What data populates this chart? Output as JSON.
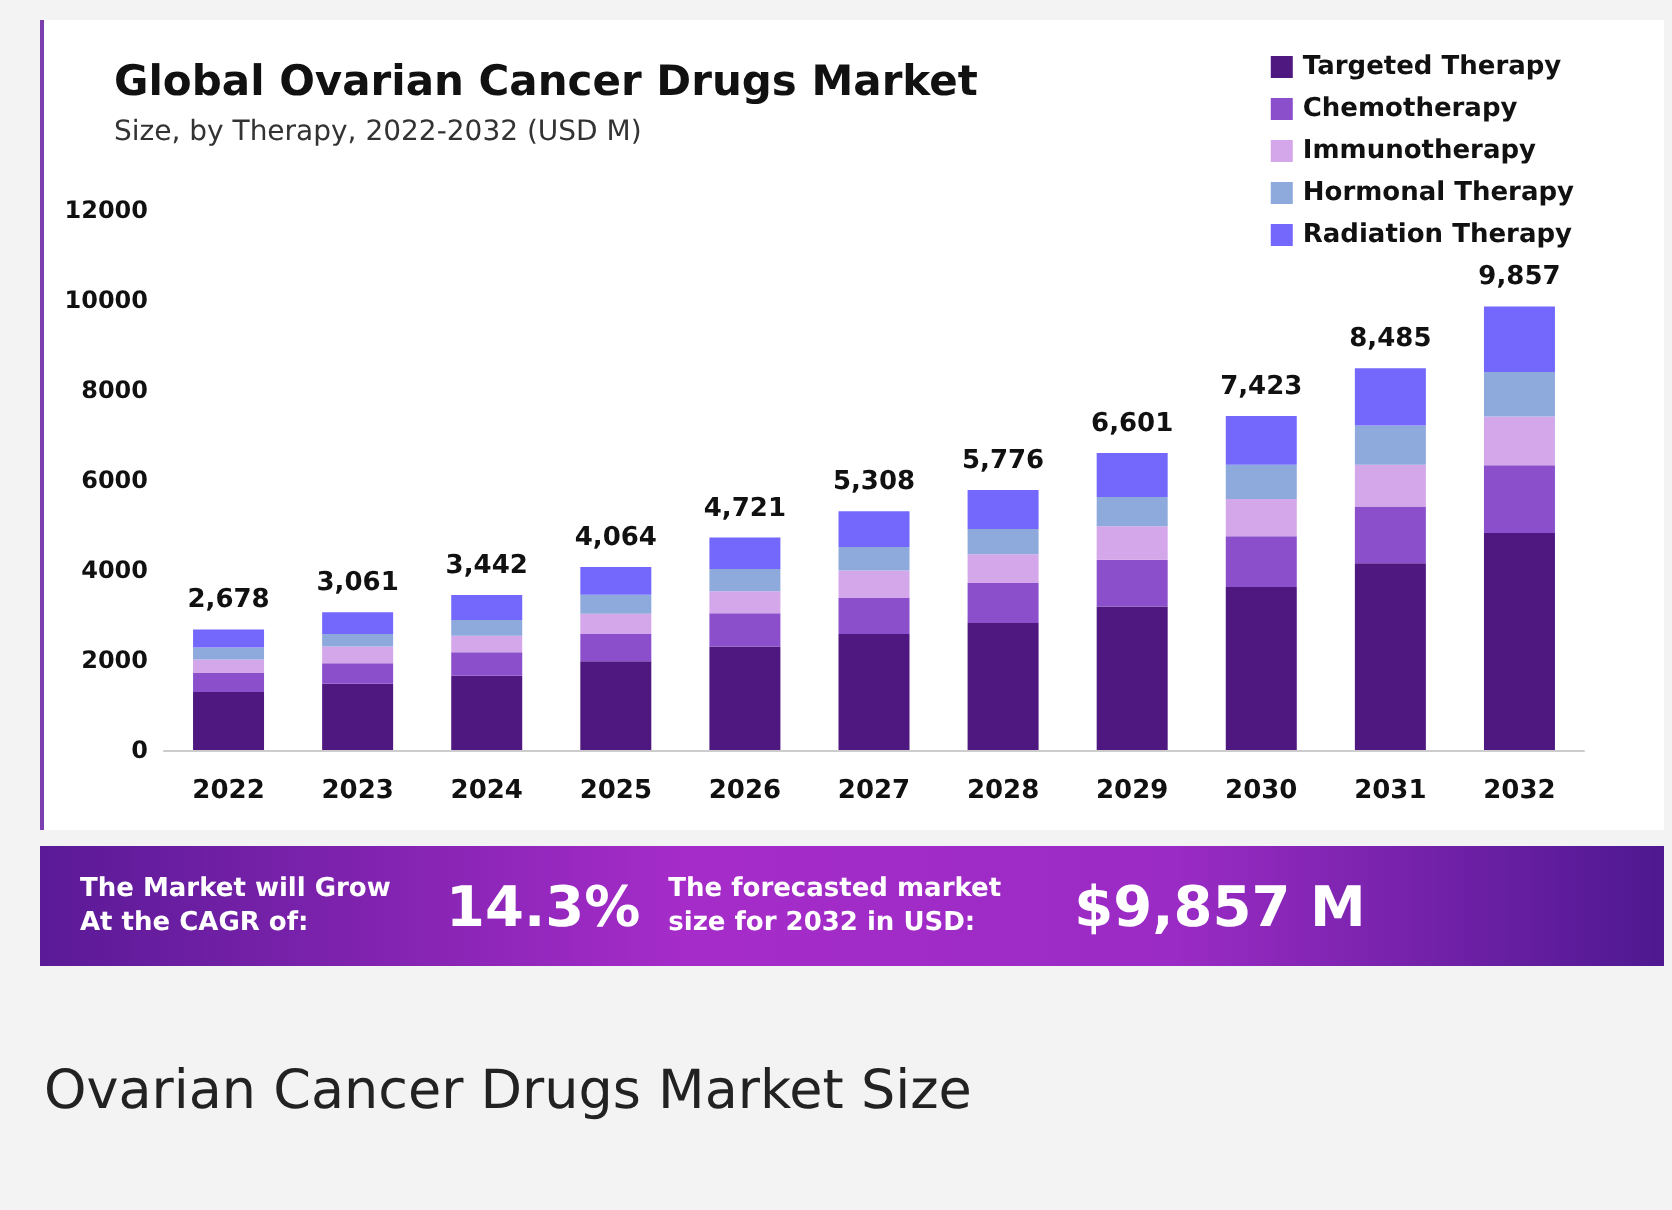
{
  "chart_data": {
    "type": "bar",
    "title": "Global Ovarian Cancer Drugs Market",
    "subtitle": "Size, by Therapy, 2022-2032 (USD M)",
    "categories": [
      "2022",
      "2023",
      "2024",
      "2025",
      "2026",
      "2027",
      "2028",
      "2029",
      "2030",
      "2031",
      "2032"
    ],
    "stacked": true,
    "series": [
      {
        "name": "Targeted Therapy",
        "color": "#4f1780",
        "values": [
          1290,
          1470,
          1650,
          1970,
          2300,
          2580,
          2820,
          3190,
          3620,
          4150,
          4820
        ]
      },
      {
        "name": "Chemotherapy",
        "color": "#8b4fcc",
        "values": [
          420,
          460,
          520,
          610,
          740,
          800,
          890,
          1040,
          1130,
          1260,
          1510
        ]
      },
      {
        "name": "Immunotherapy",
        "color": "#d4a6ea",
        "values": [
          300,
          370,
          370,
          450,
          490,
          610,
          640,
          740,
          830,
          930,
          1080
        ]
      },
      {
        "name": "Hormonal Therapy",
        "color": "#8ea9db",
        "values": [
          270,
          280,
          350,
          420,
          490,
          520,
          560,
          650,
          760,
          870,
          990
        ]
      },
      {
        "name": "Radiation Therapy",
        "color": "#7468fc",
        "values": [
          398,
          481,
          552,
          614,
          701,
          798,
          866,
          981,
          1083,
          1275,
          1457
        ]
      }
    ],
    "totals": [
      "2,678",
      "3,061",
      "3,442",
      "4,064",
      "4,721",
      "5,308",
      "5,776",
      "6,601",
      "7,423",
      "8,485",
      "9,857"
    ],
    "ylim": [
      0,
      12000
    ],
    "yticks": [
      0,
      2000,
      4000,
      6000,
      8000,
      10000,
      12000
    ],
    "grid": false,
    "legend": "top right",
    "annotations": [
      "The Market will Grow At the CAGR of:",
      "14.3%",
      "The forecasted market size for 2032 in USD:",
      "$9,857 M",
      "Ovarian Cancer Drugs Market Size"
    ]
  }
}
